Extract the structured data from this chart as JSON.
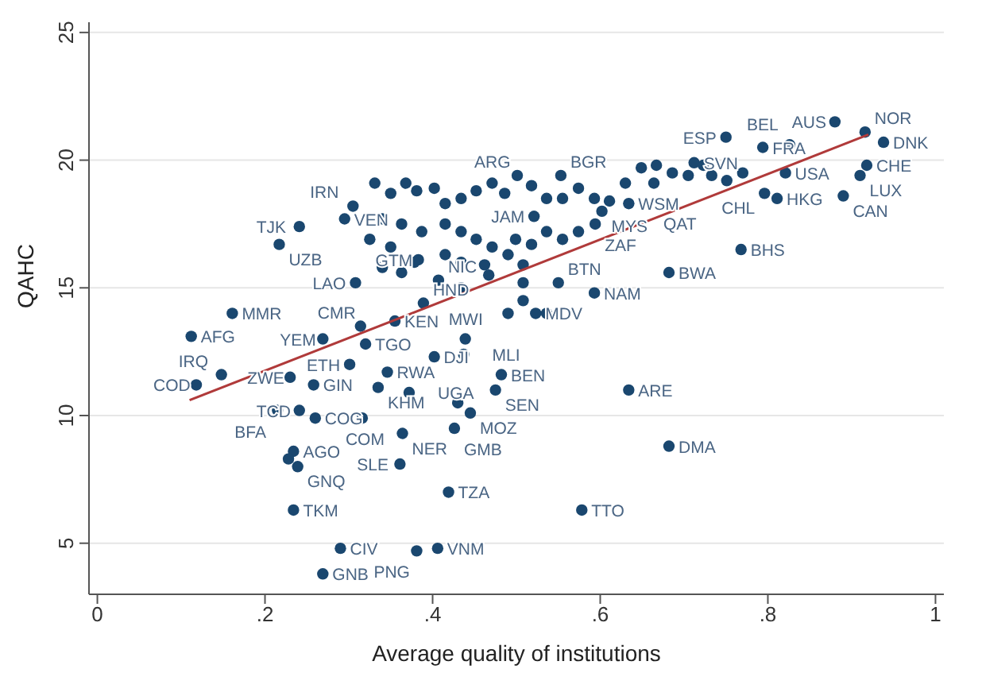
{
  "chart_data": {
    "type": "scatter",
    "xlabel": "Average quality of institutions",
    "ylabel": "QAHC",
    "xlim": [
      -0.01,
      1.01
    ],
    "xticks": [
      0,
      {
        "value": 0.2,
        "label": ".2"
      },
      {
        "value": 0.4,
        "label": ".4"
      },
      {
        "value": 0.6,
        "label": ".6"
      },
      {
        "value": 0.8,
        "label": ".8"
      },
      1
    ],
    "ylim": [
      3,
      25.4
    ],
    "yticks": [
      5,
      10,
      15,
      20,
      25
    ],
    "grid": "y",
    "marker": "circle",
    "legend": false,
    "series": [
      {
        "type": "scatter",
        "color": "#1a476f",
        "x": [
          0.88,
          0.75,
          0.794,
          0.826,
          0.821,
          0.89,
          0.811,
          0.796,
          0.91,
          0.918,
          0.938,
          0.916,
          0.768,
          0.682,
          0.593,
          0.55,
          0.523,
          0.634,
          0.682,
          0.578,
          0.712,
          0.501,
          0.553,
          0.602,
          0.634,
          0.594,
          0.521,
          0.664,
          0.241,
          0.217,
          0.305,
          0.295,
          0.308,
          0.407,
          0.383,
          0.161,
          0.112,
          0.355,
          0.314,
          0.389,
          0.301,
          0.346,
          0.148,
          0.118,
          0.23,
          0.258,
          0.335,
          0.372,
          0.32,
          0.269,
          0.439,
          0.437,
          0.402,
          0.482,
          0.475,
          0.445,
          0.426,
          0.364,
          0.316,
          0.26,
          0.215,
          0.241,
          0.234,
          0.228,
          0.239,
          0.361,
          0.419,
          0.234,
          0.29,
          0.381,
          0.406,
          0.269,
          0.43,
          0.381,
          0.402,
          0.415,
          0.434,
          0.452,
          0.471,
          0.486,
          0.518,
          0.536,
          0.555,
          0.574,
          0.593,
          0.611,
          0.63,
          0.649,
          0.667,
          0.686,
          0.705,
          0.723,
          0.733,
          0.751,
          0.77,
          0.34,
          0.363,
          0.387,
          0.415,
          0.434,
          0.452,
          0.471,
          0.499,
          0.518,
          0.536,
          0.555,
          0.574,
          0.325,
          0.35,
          0.378,
          0.415,
          0.434,
          0.462,
          0.49,
          0.508,
          0.34,
          0.363,
          0.434,
          0.467,
          0.508,
          0.508,
          0.49,
          0.536,
          0.331,
          0.35,
          0.368
        ],
        "values": [
          21.5,
          20.9,
          20.5,
          20.6,
          19.5,
          18.6,
          18.5,
          18.7,
          19.4,
          19.8,
          20.7,
          21.1,
          16.5,
          15.6,
          14.8,
          15.2,
          14.0,
          11.0,
          8.8,
          6.3,
          19.9,
          19.4,
          19.4,
          18.0,
          18.3,
          17.5,
          17.8,
          19.1,
          17.4,
          16.7,
          18.2,
          17.7,
          15.2,
          15.3,
          16.1,
          14.0,
          13.1,
          13.7,
          13.5,
          14.4,
          12.0,
          11.7,
          11.6,
          11.2,
          11.5,
          11.2,
          11.1,
          10.9,
          12.8,
          13.0,
          13.0,
          12.4,
          12.3,
          11.6,
          11.0,
          10.1,
          9.5,
          9.3,
          9.9,
          9.9,
          10.2,
          10.2,
          8.6,
          8.3,
          8.0,
          8.1,
          7.0,
          6.3,
          4.8,
          4.7,
          4.8,
          3.8,
          10.5,
          18.8,
          18.9,
          18.3,
          18.5,
          18.8,
          19.1,
          18.7,
          19.0,
          18.5,
          18.5,
          18.9,
          18.5,
          18.4,
          19.1,
          19.7,
          19.8,
          19.5,
          19.4,
          19.8,
          19.4,
          19.2,
          19.5,
          17.7,
          17.5,
          17.2,
          17.5,
          17.2,
          16.9,
          16.6,
          16.9,
          16.7,
          17.2,
          16.9,
          17.2,
          16.9,
          16.6,
          16.0,
          16.3,
          16.0,
          15.9,
          16.3,
          15.9,
          15.8,
          15.6,
          15.0,
          15.5,
          15.2,
          14.5,
          14.0,
          14.0,
          19.1,
          18.7,
          19.1
        ],
        "value_labels": [
          "AUS",
          "ESP",
          "FRA",
          "BEL",
          "USA",
          "CAN",
          "HKG",
          "CHL",
          "LUX",
          "CHE",
          "DNK",
          "NOR",
          "BHS",
          "BWA",
          "NAM",
          "BTN",
          "MDV",
          "ARE",
          "DMA",
          "TTO",
          "SVN",
          "ARG",
          "BGR",
          "MYS",
          "WSM",
          "ZAF",
          "JAM",
          "QAT",
          "TJK",
          "UZB",
          "IRN",
          "VEN",
          "LAO",
          "NIC",
          "GTM",
          "MMR",
          "AFG",
          "KEN",
          "CMR",
          "HND",
          "ETH",
          "RWA",
          "IRQ",
          "COD",
          "ZWE",
          "GIN",
          "KHM",
          "UGA",
          "TGO",
          "YEM",
          "MWI",
          "MLI",
          "DJI",
          "BEN",
          "SEN",
          "MOZ",
          "GMB",
          "NER",
          "COM",
          "COG",
          "BFA",
          "TCD",
          "AGO",
          null,
          "GNQ",
          "SLE",
          "TZA",
          "TKM",
          "CIV",
          "PNG",
          "VNM",
          "GNB",
          null,
          null,
          null,
          null,
          null,
          null,
          null,
          null,
          null,
          null,
          null,
          null,
          null,
          null,
          null,
          null,
          null,
          null,
          null,
          null,
          null,
          null,
          null,
          null,
          null,
          null,
          null,
          null,
          null,
          null,
          null,
          null,
          null,
          null,
          null,
          null,
          null,
          null,
          null,
          null,
          null,
          null,
          null,
          null,
          null,
          null,
          null,
          null,
          null,
          null,
          null,
          null,
          null,
          null
        ]
      },
      {
        "type": "line",
        "marker": "none",
        "color": "#b03a3a",
        "x": [
          0.11,
          0.92
        ],
        "values": [
          10.6,
          21.0
        ]
      }
    ]
  }
}
